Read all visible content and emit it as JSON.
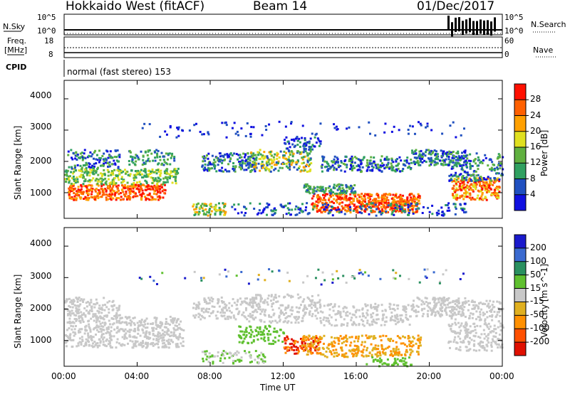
{
  "header": {
    "radar": "Hokkaido West (fitACF)",
    "beam": "Beam 14",
    "date": "01/Dec/2017"
  },
  "strip_panels": {
    "nsky_label": "N.Sky",
    "nsky_top": "10^5",
    "nsky_bottom": "10^0",
    "nsearch_label": "N.Search",
    "nsearch_top": "10^5",
    "nsearch_bottom": "10^0",
    "freq_label_line1": "Freq.",
    "freq_label_line2": "[MHz]",
    "freq_top": "18",
    "freq_bottom": "8",
    "nave_label": "Nave",
    "nave_top": "60",
    "nave_bottom": "0",
    "cpid_label": "CPID",
    "cpid_text": "normal (fast stereo) 153"
  },
  "chart_data": [
    {
      "type": "heatmap",
      "title": "",
      "ylabel": "Slant Range [km]",
      "xlabel": "",
      "ylim": [
        180,
        4590
      ],
      "y_ticks": [
        1000,
        2000,
        3000,
        4000
      ],
      "colorbar": {
        "label": "Power [dB]",
        "ticks": [
          "4",
          "8",
          "12",
          "16",
          "20",
          "24",
          "28"
        ],
        "colors": [
          "#1010e0",
          "#2050c0",
          "#30a060",
          "#60b040",
          "#e0e020",
          "#ffa000",
          "#ff6000",
          "#ff1000"
        ]
      }
    },
    {
      "type": "heatmap",
      "title": "",
      "ylabel": "Slant Range [km]",
      "xlabel": "Time UT",
      "ylim": [
        180,
        4590
      ],
      "y_ticks": [
        1000,
        2000,
        3000,
        4000
      ],
      "x_ticks": [
        "00:00",
        "04:00",
        "08:00",
        "12:00",
        "16:00",
        "20:00",
        "00:00"
      ],
      "colorbar": {
        "label": "Velocity [m s^-1]",
        "ticks": [
          "200",
          "100",
          "50",
          "15",
          "-15",
          "-50",
          "-100",
          "-200"
        ],
        "colors": [
          "#1a1acc",
          "#3a6ad0",
          "#2a9060",
          "#60c030",
          "#c8c8c8",
          "#e0b020",
          "#ff9000",
          "#ff5000",
          "#e01000"
        ]
      }
    }
  ],
  "colors": {
    "frame": "#000000",
    "ground_scatter": "#c8c8c8"
  }
}
